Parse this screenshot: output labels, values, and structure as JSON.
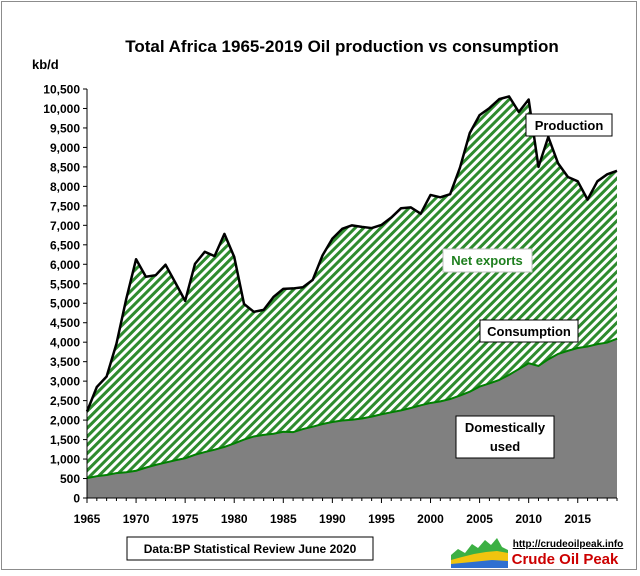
{
  "chart_data": {
    "type": "area",
    "title": "Total  Africa 1965-2019 Oil production  vs consumption",
    "ylabel": "kb/d",
    "xlabel": "",
    "ylim": [
      0,
      10500
    ],
    "xlim": [
      1965,
      2019
    ],
    "y_ticks": [
      0,
      500,
      1000,
      1500,
      2000,
      2500,
      3000,
      3500,
      4000,
      4500,
      5000,
      5500,
      6000,
      6500,
      7000,
      7500,
      8000,
      8500,
      9000,
      9500,
      10000,
      10500
    ],
    "y_tick_labels": [
      "0",
      "500",
      "1,000",
      "1,500",
      "2,000",
      "2,500",
      "3,000",
      "3,500",
      "4,000",
      "4,500",
      "5,000",
      "5,500",
      "6,000",
      "6,500",
      "7,000",
      "7,500",
      "8,000",
      "8,500",
      "9,000",
      "9,500",
      "10,000",
      "10,500"
    ],
    "x_ticks": [
      1965,
      1970,
      1975,
      1980,
      1985,
      1990,
      1995,
      2000,
      2005,
      2010,
      2015
    ],
    "grid": false,
    "x": [
      1965,
      1966,
      1967,
      1968,
      1969,
      1970,
      1971,
      1972,
      1973,
      1974,
      1975,
      1976,
      1977,
      1978,
      1979,
      1980,
      1981,
      1982,
      1983,
      1984,
      1985,
      1986,
      1987,
      1988,
      1989,
      1990,
      1991,
      1992,
      1993,
      1994,
      1995,
      1996,
      1997,
      1998,
      1999,
      2000,
      2001,
      2002,
      2003,
      2004,
      2005,
      2006,
      2007,
      2008,
      2009,
      2010,
      2011,
      2012,
      2013,
      2014,
      2015,
      2016,
      2017,
      2018,
      2019
    ],
    "series": [
      {
        "name": "Production",
        "values": [
          2220,
          2850,
          3120,
          3960,
          5110,
          6130,
          5680,
          5720,
          5990,
          5530,
          5060,
          6010,
          6320,
          6210,
          6780,
          6190,
          4980,
          4780,
          4830,
          5160,
          5370,
          5380,
          5410,
          5600,
          6230,
          6660,
          6910,
          7000,
          6960,
          6930,
          7010,
          7200,
          7440,
          7460,
          7300,
          7780,
          7720,
          7800,
          8480,
          9370,
          9830,
          10010,
          10240,
          10310,
          9910,
          10230,
          8500,
          9270,
          8590,
          8240,
          8130,
          7660,
          8130,
          8310,
          8400
        ]
      },
      {
        "name": "Consumption",
        "values": [
          510,
          560,
          590,
          640,
          660,
          700,
          780,
          850,
          910,
          970,
          1020,
          1110,
          1180,
          1240,
          1310,
          1400,
          1500,
          1580,
          1620,
          1650,
          1700,
          1690,
          1770,
          1830,
          1900,
          1950,
          1990,
          2010,
          2040,
          2090,
          2150,
          2200,
          2250,
          2310,
          2380,
          2440,
          2480,
          2540,
          2630,
          2730,
          2860,
          2940,
          3030,
          3160,
          3310,
          3460,
          3390,
          3560,
          3700,
          3780,
          3850,
          3890,
          3950,
          3990,
          4090
        ]
      }
    ],
    "area_labels": {
      "production": "Production",
      "net_exports": "Net exports",
      "consumption": "Consumption",
      "domestic": "Domestically used"
    },
    "source_note": "Data:BP Statistical Review June 2020",
    "logo": {
      "url_text": "http://crudeoilpeak.info",
      "name_text": "Crude Oil Peak"
    },
    "colors": {
      "net_exports_fill": "#2e8b2e",
      "hatch_light": "#ffffff",
      "domestic_fill": "#808080",
      "production_line": "#000000",
      "consumption_line": "#008000",
      "net_exports_label": "#1e7f1e",
      "logo_text": "#cc0000"
    }
  }
}
